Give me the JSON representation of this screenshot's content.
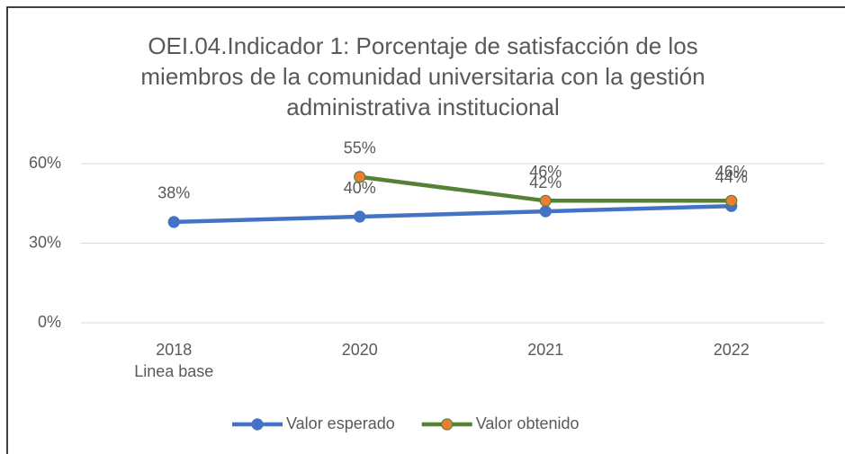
{
  "chart_data": {
    "type": "line",
    "title": "OEI.04.Indicador 1: Porcentaje de satisfacción de los miembros de la comunidad universitaria con la gestión administrativa institucional",
    "categories": [
      "2018\nLinea base",
      "2020",
      "2021",
      "2022"
    ],
    "series": [
      {
        "name": "Valor esperado",
        "color": "#4472c4",
        "marker_color": "#4472c4",
        "values": [
          38,
          40,
          42,
          44
        ],
        "value_labels": [
          "38%",
          "40%",
          "42%",
          "44%"
        ]
      },
      {
        "name": "Valor obtenido",
        "color": "#548235",
        "marker_color": "#ed7d31",
        "values": [
          null,
          55,
          46,
          46
        ],
        "value_labels": [
          null,
          "55%",
          "46%",
          "46%"
        ]
      }
    ],
    "ylim": [
      0,
      60
    ],
    "yticks": [
      {
        "value": 0,
        "label": "0%"
      },
      {
        "value": 30,
        "label": "30%"
      },
      {
        "value": 60,
        "label": "60%"
      }
    ],
    "grid": true,
    "legend": "bottom"
  }
}
